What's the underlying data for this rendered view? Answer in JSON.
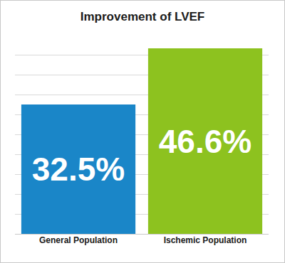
{
  "chart_data": {
    "type": "bar",
    "title": "Improvement of LVEF",
    "categories": [
      "General Population",
      "Ischemic Population"
    ],
    "values": [
      32.5,
      46.6
    ],
    "value_labels": [
      "32.5%",
      "46.6%"
    ],
    "colors": [
      "#1a86c8",
      "#8dc21f"
    ],
    "ylim": [
      0,
      50
    ],
    "yticks": [
      0,
      5,
      10,
      15,
      20,
      25,
      30,
      35,
      40,
      45,
      50
    ],
    "grid": true,
    "data_labels": true,
    "tick_labels": "x"
  }
}
